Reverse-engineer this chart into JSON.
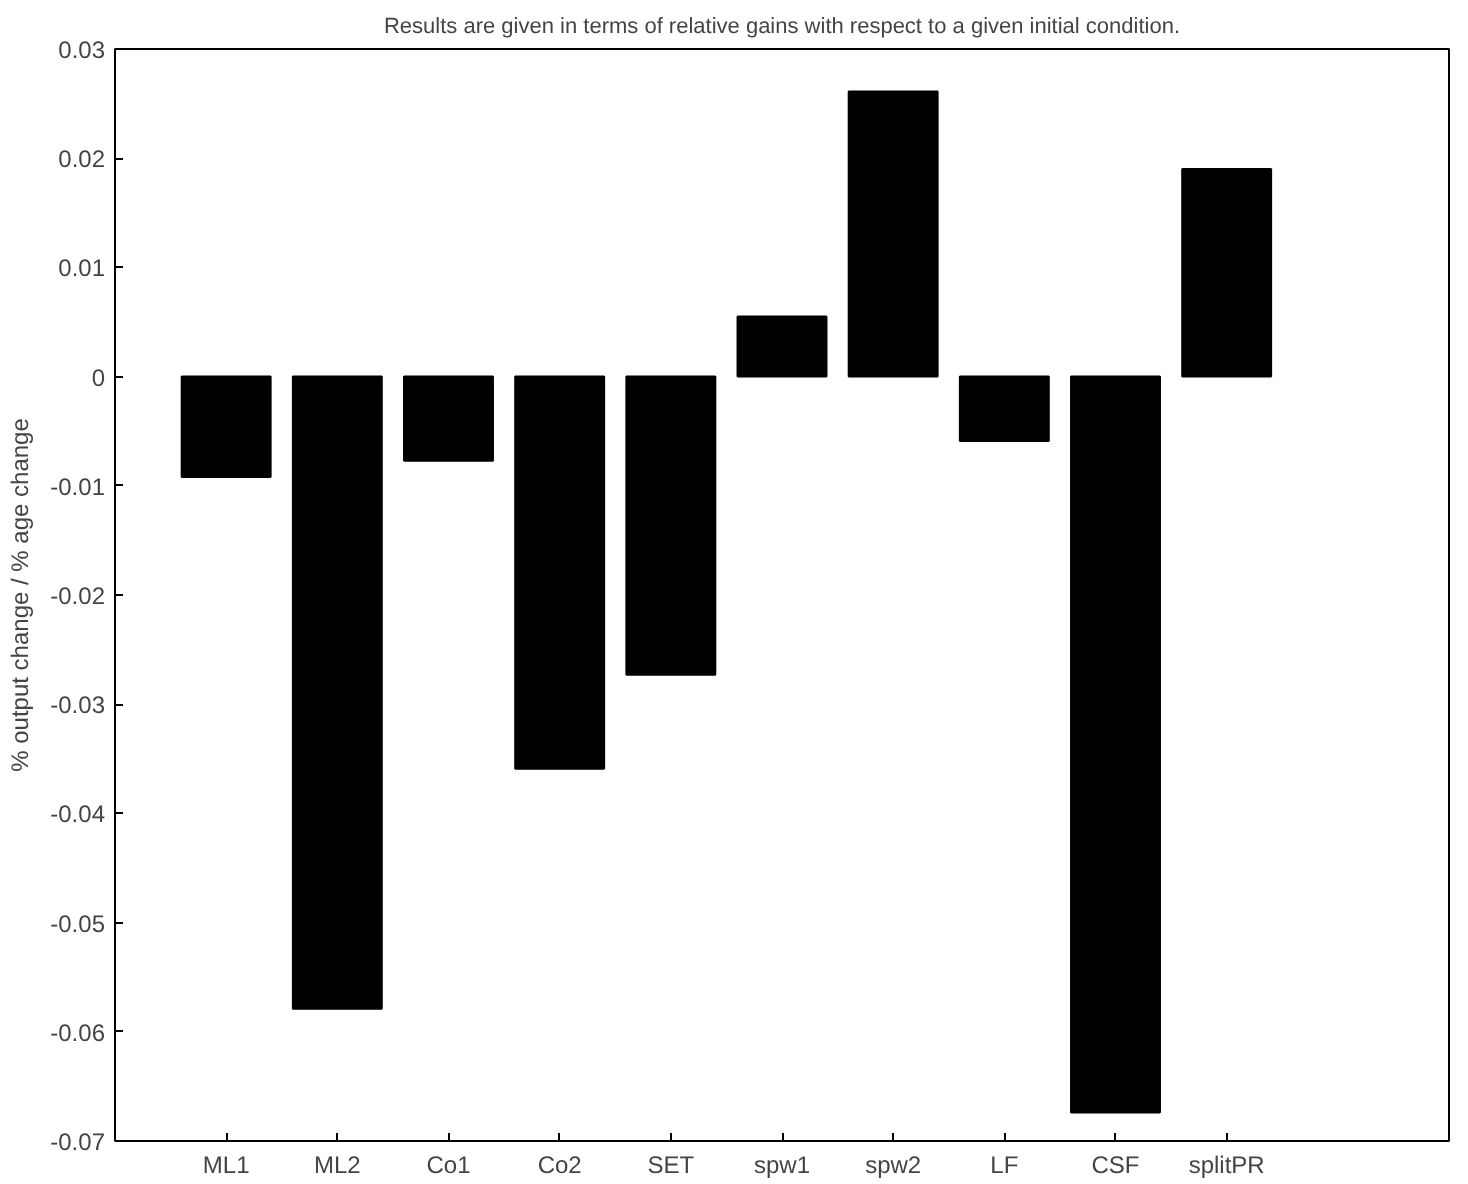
{
  "chart_data": {
    "type": "bar",
    "title": "Results are given in terms of relative gains with respect to a given initial condition.",
    "ylabel": "% output change / % age change",
    "categories": [
      "ML1",
      "ML2",
      "Co1",
      "Co2",
      "SET",
      "spw1",
      "spw2",
      "LF",
      "CSF",
      "splitPR"
    ],
    "values": [
      -0.0092,
      -0.0579,
      -0.0077,
      -0.0359,
      -0.0273,
      0.0055,
      0.0261,
      -0.0059,
      -0.0674,
      0.019
    ],
    "color": "#000000",
    "ylim": [
      -0.07,
      0.03
    ],
    "yticks": [
      -0.07,
      -0.06,
      -0.05,
      -0.04,
      -0.03,
      -0.02,
      -0.01,
      0,
      0.01,
      0.02,
      0.03
    ],
    "grid": false
  }
}
